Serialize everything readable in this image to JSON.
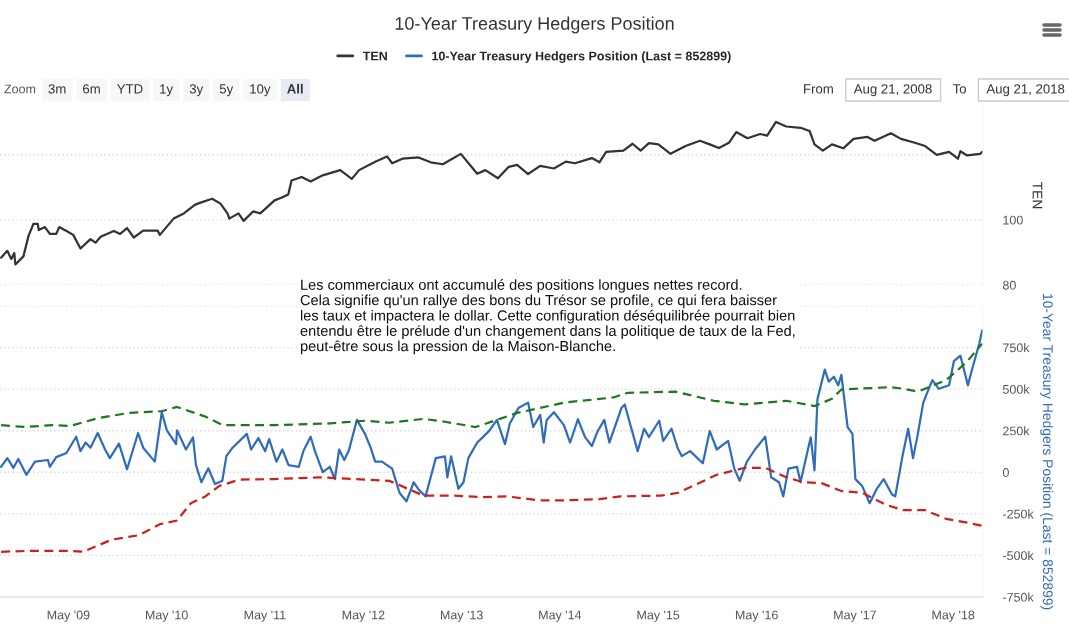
{
  "chart_data": [
    {
      "type": "line",
      "title": "10-Year Treasury Hedgers Position",
      "ylabel": "TEN",
      "legend": "top",
      "grid": "y",
      "tick_labels": "y",
      "annotations": [
        "Les commerciaux ont accumulé des positions longues nettes record.\nCela signifie qu'un rallye des bons du Trésor se profile, ce qui fera baisser\nles taux et impactera le dollar. Cette configuration déséquilibrée pourrait bien\nentendu être le prélude d'un changement dans la politique de taux de la Fed,\npeut-être sous la pression de la Maison-Blanche.",
        "Zoom",
        "3m",
        "6m",
        "YTD",
        "1y",
        "3y",
        "5y",
        "10y",
        "All",
        "From",
        "Aug 21, 2008",
        "To",
        "Aug 21, 2018"
      ],
      "xlim": [
        "2008-08-20",
        "2018-08-20"
      ],
      "ylim": [
        80,
        135
      ],
      "yticks": [
        80,
        100,
        {
          "value": 120,
          "label": null
        }
      ],
      "series": [
        {
          "name": "TEN",
          "color": "#333333",
          "line_style": "solid",
          "x": [
            "2008-08-24",
            "2008-09-16",
            "2008-10-01",
            "2008-10-12",
            "2008-10-16",
            "2008-11-15",
            "2008-12-04",
            "2008-12-22",
            "2009-01-07",
            "2009-01-11",
            "2009-02-03",
            "2009-02-21",
            "2009-03-17",
            "2009-03-28",
            "2009-04-24",
            "2009-05-19",
            "2009-06-15",
            "2009-07-22",
            "2009-08-10",
            "2009-08-29",
            "2009-10-17",
            "2009-11-09",
            "2009-12-05",
            "2009-12-30",
            "2010-02-03",
            "2010-03-29",
            "2010-04-06",
            "2010-05-27",
            "2010-07-04",
            "2010-08-15",
            "2010-09-07",
            "2010-10-17",
            "2010-11-17",
            "2010-12-13",
            "2010-12-20",
            "2011-01-23",
            "2011-02-11",
            "2011-03-18",
            "2011-04-14",
            "2011-06-06",
            "2011-07-01",
            "2011-07-27",
            "2011-08-08",
            "2011-09-15",
            "2011-10-18",
            "2011-12-02",
            "2012-02-05",
            "2012-03-19",
            "2012-04-15",
            "2012-06-14",
            "2012-07-28",
            "2012-08-16",
            "2012-09-23",
            "2012-11-22",
            "2013-01-06",
            "2013-02-20",
            "2013-04-28",
            "2013-06-28",
            "2013-07-28",
            "2013-09-13",
            "2013-10-23",
            "2013-11-23",
            "2014-01-03",
            "2014-02-17",
            "2014-04-09",
            "2014-05-23",
            "2014-06-26",
            "2014-08-28",
            "2014-09-25",
            "2014-10-20",
            "2014-12-23",
            "2015-01-26",
            "2015-02-25",
            "2015-03-28",
            "2015-05-02",
            "2015-06-16",
            "2015-08-11",
            "2015-10-03",
            "2015-11-09",
            "2015-12-13",
            "2016-01-19",
            "2016-02-15",
            "2016-03-28",
            "2016-05-14",
            "2016-06-09",
            "2016-07-12",
            "2016-08-19",
            "2016-10-11",
            "2016-11-14",
            "2016-12-02",
            "2017-01-02",
            "2017-02-05",
            "2017-03-19",
            "2017-04-26",
            "2017-06-17",
            "2017-07-13",
            "2017-09-12",
            "2017-10-19",
            "2017-12-10",
            "2018-01-17",
            "2018-03-01",
            "2018-04-16",
            "2018-05-19",
            "2018-05-28",
            "2018-06-22",
            "2018-08-10",
            "2018-08-17"
          ],
          "values": [
            88.4,
            90.5,
            88,
            89.8,
            86.3,
            88.8,
            95.1,
            98.8,
            98.8,
            96.9,
            97.8,
            95.7,
            95.7,
            97.8,
            96.6,
            95.4,
            91.2,
            94.1,
            93,
            94.8,
            96.6,
            95.7,
            97.5,
            94.6,
            96.7,
            96.7,
            95.4,
            100.4,
            102,
            104.7,
            105.4,
            106.5,
            105,
            102,
            100.4,
            102,
            99.7,
            102.6,
            102,
            106,
            106.8,
            107.8,
            112.1,
            113.2,
            111.8,
            113.7,
            115.3,
            112.6,
            115.3,
            117.9,
            119.5,
            117.4,
            118.8,
            119.2,
            117.7,
            117.1,
            120.3,
            114.2,
            115.3,
            112.8,
            116.3,
            116.9,
            114.1,
            116.6,
            115.8,
            117.9,
            117.4,
            119,
            117.7,
            120.9,
            121.3,
            123.4,
            121.3,
            123.6,
            123.2,
            120.3,
            122.7,
            124.3,
            123.2,
            122.1,
            123.7,
            127,
            125.1,
            126.4,
            125.9,
            130.1,
            128.7,
            128.3,
            127.3,
            123.2,
            121.3,
            123.2,
            122,
            124.9,
            125.5,
            124.3,
            126.6,
            124.9,
            123.7,
            122.7,
            120,
            120.9,
            118.8,
            121.1,
            119.8,
            120.3,
            120.9
          ]
        }
      ]
    },
    {
      "type": "line",
      "ylabel": "10-Year Treasury Hedgers Position (Last = 852899)",
      "legend": "top",
      "grid": "y",
      "xlim": [
        "2008-08-20",
        "2018-08-20"
      ],
      "xticks": [
        {
          "value": "2009-05-01",
          "label": "May '09"
        },
        {
          "value": "2010-05-01",
          "label": "May '10"
        },
        {
          "value": "2011-05-01",
          "label": "May '11"
        },
        {
          "value": "2012-05-01",
          "label": "May '12"
        },
        {
          "value": "2013-05-01",
          "label": "May '13"
        },
        {
          "value": "2014-05-01",
          "label": "May '14"
        },
        {
          "value": "2015-05-01",
          "label": "May '15"
        },
        {
          "value": "2016-05-01",
          "label": "May '16"
        },
        {
          "value": "2017-05-01",
          "label": "May '17"
        },
        {
          "value": "2018-05-01",
          "label": "May '18"
        }
      ],
      "ylim": [
        -750000,
        1000000
      ],
      "yticks": [
        {
          "value": -750000,
          "label": "-750k"
        },
        {
          "value": -500000,
          "label": "-500k"
        },
        {
          "value": -250000,
          "label": "-250k"
        },
        0,
        {
          "value": 250000,
          "label": "250k"
        },
        {
          "value": 500000,
          "label": "500k"
        },
        {
          "value": 750000,
          "label": "750k"
        },
        {
          "value": 1000000,
          "label": null
        }
      ],
      "series": [
        {
          "name": "10-Year Treasury Hedgers Position (Last = 852899)",
          "color": "#2f6dbb",
          "line_style": "solid",
          "x": [
            "2008-08-24",
            "2008-09-16",
            "2008-10-09",
            "2008-10-27",
            "2008-11-26",
            "2008-12-28",
            "2009-02-14",
            "2009-02-21",
            "2009-03-17",
            "2009-04-24",
            "2009-05-30",
            "2009-06-15",
            "2009-07-04",
            "2009-07-22",
            "2009-08-18",
            "2009-09-14",
            "2009-10-02",
            "2009-11-05",
            "2009-12-05",
            "2010-01-15",
            "2010-02-03",
            "2010-03-18",
            "2010-04-13",
            "2010-05-02",
            "2010-06-05",
            "2010-06-09",
            "2010-07-12",
            "2010-08-07",
            "2010-08-18",
            "2010-09-07",
            "2010-10-03",
            "2010-10-28",
            "2010-11-24",
            "2010-12-09",
            "2011-01-01",
            "2011-02-23",
            "2011-03-11",
            "2011-04-07",
            "2011-05-02",
            "2011-05-17",
            "2011-06-13",
            "2011-07-05",
            "2011-07-28",
            "2011-09-04",
            "2011-09-22",
            "2011-10-18",
            "2011-11-03",
            "2011-12-02",
            "2011-12-28",
            "2012-01-16",
            "2012-02-01",
            "2012-02-20",
            "2012-03-08",
            "2012-04-07",
            "2012-05-07",
            "2012-05-28",
            "2012-06-14",
            "2012-07-09",
            "2012-08-16",
            "2012-09-12",
            "2012-10-08",
            "2012-11-04",
            "2012-11-22",
            "2012-12-18",
            "2013-01-06",
            "2013-01-25",
            "2013-02-28",
            "2013-03-09",
            "2013-03-23",
            "2013-04-19",
            "2013-05-08",
            "2013-05-26",
            "2013-06-28",
            "2013-07-18",
            "2013-08-13",
            "2013-09-09",
            "2013-10-09",
            "2013-10-27",
            "2013-11-28",
            "2014-01-03",
            "2014-01-22",
            "2014-02-17",
            "2014-03-02",
            "2014-03-13",
            "2014-04-09",
            "2014-05-16",
            "2014-06-08",
            "2014-07-07",
            "2014-08-03",
            "2014-08-28",
            "2014-09-17",
            "2014-10-13",
            "2014-11-01",
            "2014-12-16",
            "2014-12-28",
            "2015-02-14",
            "2015-03-10",
            "2015-03-28",
            "2015-05-05",
            "2015-05-20",
            "2015-06-20",
            "2015-07-12",
            "2015-07-28",
            "2015-08-28",
            "2015-10-14",
            "2015-11-09",
            "2015-12-05",
            "2016-01-16",
            "2016-02-08",
            "2016-02-28",
            "2016-03-26",
            "2016-04-25",
            "2016-06-02",
            "2016-06-24",
            "2016-07-23",
            "2016-08-08",
            "2016-08-27",
            "2016-09-28",
            "2016-10-11",
            "2016-11-18",
            "2016-12-02",
            "2016-12-13",
            "2017-01-09",
            "2017-01-24",
            "2017-02-12",
            "2017-02-28",
            "2017-03-12",
            "2017-04-04",
            "2017-04-22",
            "2017-05-03",
            "2017-05-28",
            "2017-06-25",
            "2017-07-20",
            "2017-08-16",
            "2017-09-16",
            "2017-09-28",
            "2017-10-26",
            "2017-11-15",
            "2017-12-03",
            "2017-12-21",
            "2018-01-10",
            "2018-02-02",
            "2018-02-13",
            "2018-03-09",
            "2018-04-16",
            "2018-05-04",
            "2018-05-28",
            "2018-06-25",
            "2018-07-10",
            "2018-08-06",
            "2018-08-17"
          ],
          "values": [
            33000,
            85000,
            27000,
            80000,
            -15000,
            64000,
            74000,
            33000,
            91000,
            116000,
            214000,
            127000,
            179000,
            148000,
            236000,
            139000,
            85000,
            172000,
            18000,
            236000,
            148000,
            64000,
            361000,
            252000,
            169000,
            252000,
            137000,
            210000,
            43000,
            -60000,
            24000,
            -71000,
            -51000,
            97000,
            148000,
            231000,
            137000,
            206000,
            127000,
            200000,
            64000,
            137000,
            43000,
            33000,
            131000,
            214000,
            127000,
            1000,
            33000,
            -41000,
            137000,
            74000,
            131000,
            315000,
            231000,
            148000,
            64000,
            64000,
            22000,
            -123000,
            -175000,
            -60000,
            -103000,
            -145000,
            -30000,
            85000,
            96000,
            -30000,
            96000,
            -99000,
            -60000,
            85000,
            179000,
            210000,
            252000,
            315000,
            169000,
            293000,
            387000,
            419000,
            272000,
            345000,
            179000,
            315000,
            361000,
            284000,
            179000,
            319000,
            210000,
            158000,
            242000,
            315000,
            179000,
            387000,
            408000,
            127000,
            262000,
            212000,
            310000,
            189000,
            262000,
            148000,
            97000,
            127000,
            54000,
            248000,
            137000,
            189000,
            22000,
            -51000,
            64000,
            137000,
            214000,
            -30000,
            -60000,
            -145000,
            22000,
            33000,
            -60000,
            210000,
            12000,
            440000,
            617000,
            545000,
            575000,
            523000,
            586000,
            272000,
            231000,
            -41000,
            -82000,
            -186000,
            -103000,
            -41000,
            -134000,
            -145000,
            106000,
            262000,
            85000,
            231000,
            419000,
            512000,
            554000,
            502000,
            523000,
            669000,
            701000,
            523000,
            617000,
            773000,
            853000
          ]
        },
        {
          "color": "#1b7a1b",
          "line_style": "dashed",
          "x": [
            "2008-08-24",
            "2008-11-23",
            "2009-03-02",
            "2009-05-05",
            "2009-08-18",
            "2009-12-12",
            "2010-04-13",
            "2010-06-09",
            "2010-09-22",
            "2010-11-24",
            "2011-06-06",
            "2011-12-17",
            "2012-05-07",
            "2012-08-05",
            "2012-12-10",
            "2013-02-28",
            "2013-06-22",
            "2013-09-09",
            "2013-11-23",
            "2014-02-17",
            "2014-05-16",
            "2014-11-16",
            "2015-01-08",
            "2015-07-04",
            "2015-11-24",
            "2016-03-18",
            "2016-08-19",
            "2016-12-02",
            "2017-02-05",
            "2017-03-12",
            "2017-09-12",
            "2017-10-28",
            "2017-12-21",
            "2018-04-05",
            "2018-06-18",
            "2018-08-17"
          ],
          "values": [
            283000,
            272000,
            284000,
            278000,
            325000,
            357000,
            367000,
            393000,
            335000,
            284000,
            284000,
            293000,
            310000,
            298000,
            321000,
            304000,
            272000,
            315000,
            357000,
            387000,
            419000,
            450000,
            478000,
            485000,
            430000,
            408000,
            430000,
            398000,
            442000,
            498000,
            512000,
            502000,
            485000,
            554000,
            659000,
            773000
          ]
        },
        {
          "color": "#cc1f1f",
          "line_style": "dashed",
          "x": [
            "2008-08-24",
            "2008-12-15",
            "2009-04-24",
            "2009-06-26",
            "2009-10-09",
            "2010-01-19",
            "2010-04-06",
            "2010-06-09",
            "2010-07-30",
            "2010-09-22",
            "2010-11-13",
            "2011-01-27",
            "2011-06-06",
            "2011-11-21",
            "2012-05-07",
            "2012-08-05",
            "2012-12-10",
            "2013-04-05",
            "2013-07-18",
            "2013-10-16",
            "2014-02-17",
            "2014-05-05",
            "2014-09-25",
            "2014-12-12",
            "2015-05-13",
            "2015-07-15",
            "2015-09-07",
            "2015-12-05",
            "2016-03-18",
            "2016-06-02",
            "2016-08-19",
            "2016-10-22",
            "2016-12-28",
            "2017-03-12",
            "2017-05-28",
            "2017-08-27",
            "2017-10-28",
            "2018-01-17",
            "2018-04-05",
            "2018-06-18",
            "2018-08-17"
          ],
          "values": [
            -478000,
            -472000,
            -472000,
            -478000,
            -405000,
            -378000,
            -312000,
            -290000,
            -186000,
            -145000,
            -82000,
            -44000,
            -41000,
            -30000,
            -44000,
            -51000,
            -140000,
            -140000,
            -149000,
            -145000,
            -169000,
            -169000,
            -162000,
            -145000,
            -140000,
            -123000,
            -82000,
            -15000,
            27000,
            27000,
            -30000,
            -60000,
            -65000,
            -113000,
            -123000,
            -197000,
            -228000,
            -228000,
            -280000,
            -301000,
            -322000
          ]
        }
      ]
    }
  ]
}
